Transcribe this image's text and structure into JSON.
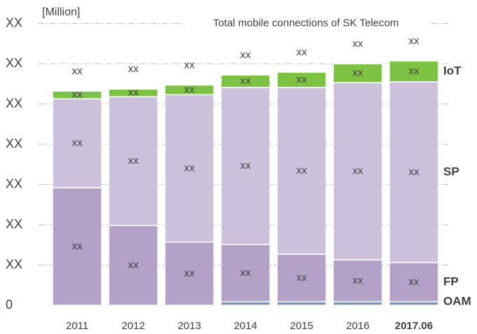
{
  "chart_data": {
    "type": "stacked_bar",
    "title": "Total mobile connections of SK Telecom",
    "y_label": "[Million]",
    "categories": [
      "2011",
      "2012",
      "2013",
      "2014",
      "2015",
      "2016",
      "2017.06"
    ],
    "series": [
      {
        "name": "OAM",
        "color": "#7f97ad",
        "label_color": "#7f97ad",
        "values": [
          0,
          0,
          0,
          0.09,
          0.09,
          0.09,
          0.09
        ]
      },
      {
        "name": "FP",
        "color": "#b3a1c8",
        "label_color": "#7030a0",
        "values": [
          2.92,
          1.98,
          1.57,
          1.42,
          1.18,
          1.04,
          0.97
        ],
        "value_labels": [
          "xx",
          "xx",
          "xx",
          "xx",
          "xx",
          "xx",
          "xx"
        ]
      },
      {
        "name": "SP",
        "color": "#cbc1dd",
        "label_color": "#8064a2",
        "values": [
          2.21,
          3.2,
          3.66,
          3.9,
          4.14,
          4.4,
          4.49
        ],
        "value_labels": [
          "xx",
          "xx",
          "xx",
          "xx",
          "xx",
          "xx",
          "xx"
        ]
      },
      {
        "name": "IoT",
        "color": "#7dc242",
        "label_color": "#7dc242",
        "values": [
          0.19,
          0.19,
          0.24,
          0.31,
          0.38,
          0.47,
          0.52
        ],
        "value_labels": [
          "xx",
          "xx",
          "xx",
          "xx",
          "xx",
          "xx",
          "xx"
        ]
      }
    ],
    "total_labels": [
      "xx",
      "xx",
      "xx",
      "xx",
      "xx",
      "xx",
      "xx"
    ],
    "ylim": [
      0,
      7.2
    ],
    "yticks": [
      0,
      {
        "value": 1,
        "label": "XX"
      },
      {
        "value": 2,
        "label": "XX"
      },
      {
        "value": 3,
        "label": "XX"
      },
      {
        "value": 4,
        "label": "XX"
      },
      {
        "value": 5,
        "label": "XX"
      },
      {
        "value": 6,
        "label": "XX"
      },
      {
        "value": 7,
        "label": "XX"
      }
    ],
    "grid": true
  }
}
